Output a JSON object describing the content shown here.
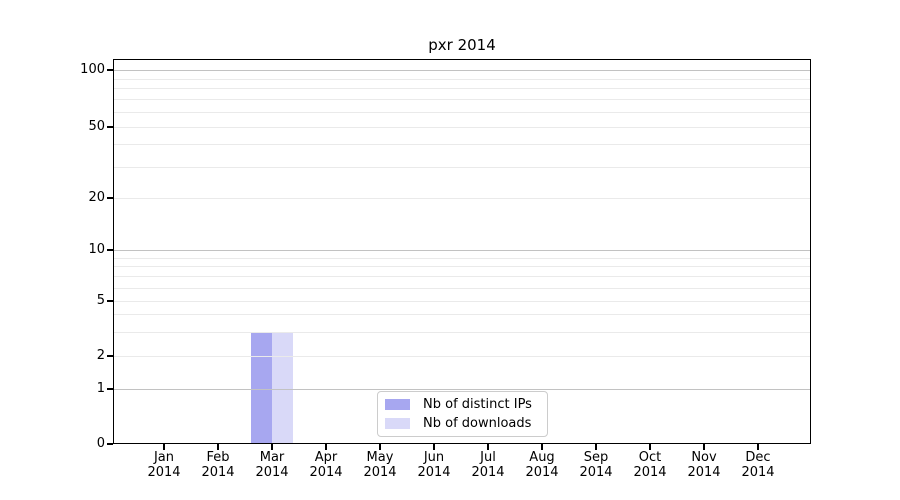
{
  "chart_data": {
    "type": "bar",
    "title": "pxr 2014",
    "categories": [
      "Jan 2014",
      "Feb 2014",
      "Mar 2014",
      "Apr 2014",
      "May 2014",
      "Jun 2014",
      "Jul 2014",
      "Aug 2014",
      "Sep 2014",
      "Oct 2014",
      "Nov 2014",
      "Dec 2014"
    ],
    "series": [
      {
        "name": "Nb of distinct IPs",
        "color": "#a7a7f0",
        "values": [
          0,
          0,
          3,
          0,
          0,
          0,
          0,
          0,
          0,
          0,
          0,
          0
        ]
      },
      {
        "name": "Nb of downloads",
        "color": "#d9d9f8",
        "values": [
          0,
          0,
          3,
          0,
          0,
          0,
          0,
          0,
          0,
          0,
          0,
          0
        ]
      }
    ],
    "xlabel": "",
    "ylabel": "",
    "yscale": "symlog",
    "ylim": [
      0,
      115
    ],
    "yticks": [
      0,
      1,
      2,
      5,
      10,
      20,
      50,
      100
    ],
    "grid": {
      "on": true,
      "major_values": [
        1,
        10,
        100
      ],
      "minor_values": [
        2,
        3,
        4,
        5,
        6,
        7,
        8,
        9,
        20,
        30,
        40,
        50,
        60,
        70,
        80,
        90
      ]
    },
    "legend": {
      "position": "lower center",
      "entries": [
        "Nb of distinct IPs",
        "Nb of downloads"
      ]
    }
  },
  "colors": {
    "background": "#ffffff",
    "axis": "#000000",
    "text": "#000000",
    "grid_major": "#c2c2c2",
    "grid_minor": "#eaeaea",
    "legend_border": "#cccccc"
  }
}
